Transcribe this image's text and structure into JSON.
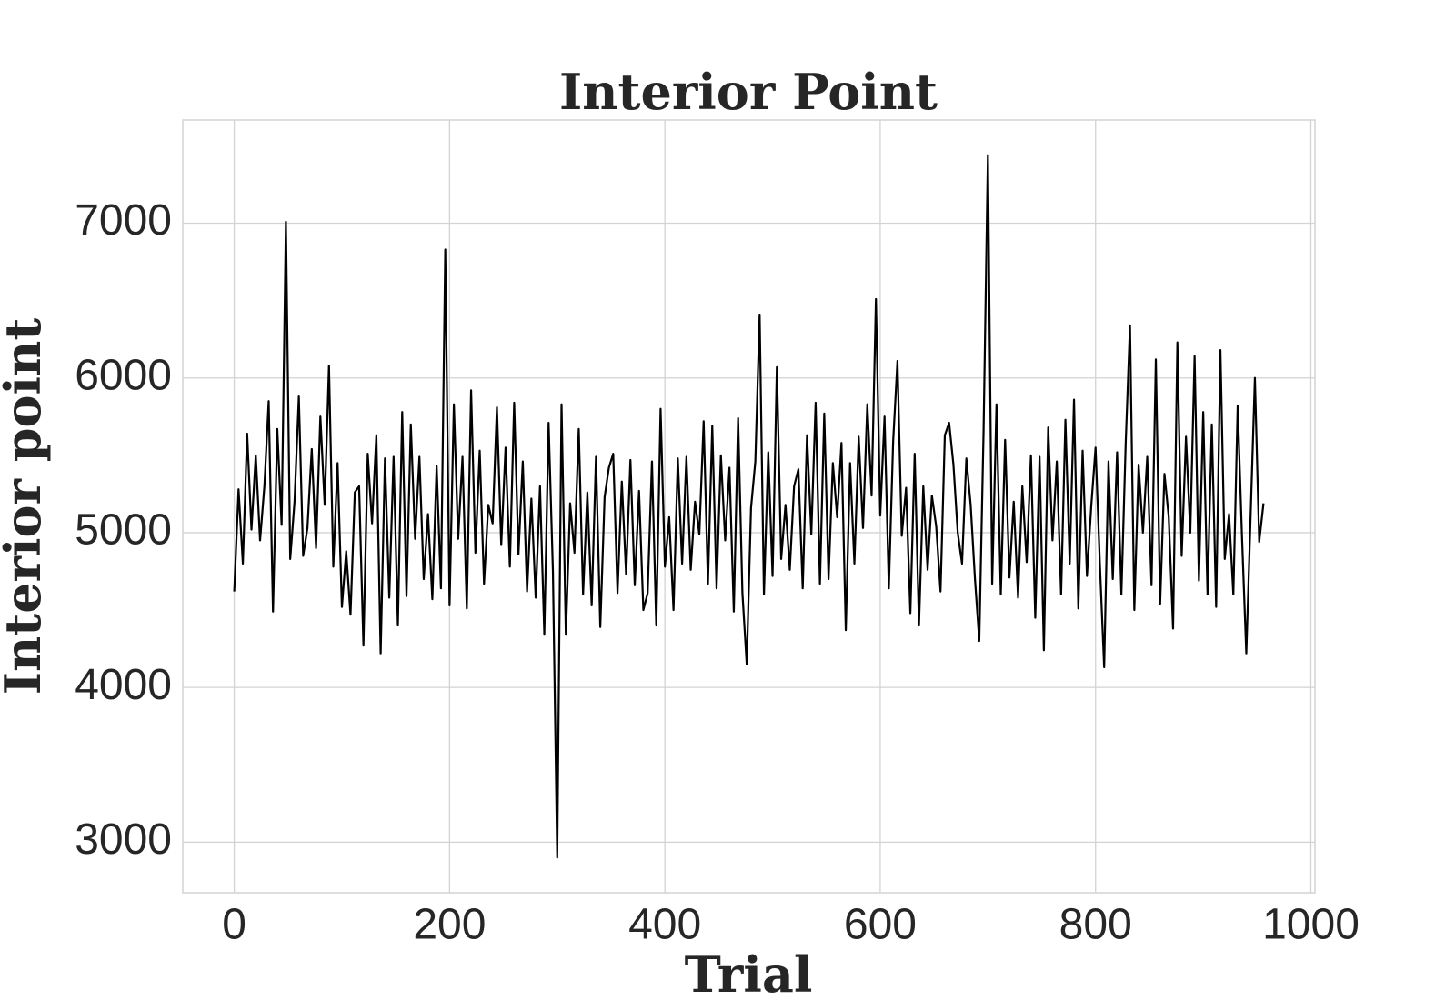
{
  "chart_data": {
    "type": "line",
    "title": "Interior Point",
    "xlabel": "Trial",
    "ylabel": "Interior point",
    "x": [
      0,
      4,
      8,
      12,
      16,
      20,
      24,
      28,
      32,
      36,
      40,
      44,
      48,
      52,
      56,
      60,
      64,
      68,
      72,
      76,
      80,
      84,
      88,
      92,
      96,
      100,
      104,
      108,
      112,
      116,
      120,
      124,
      128,
      132,
      136,
      140,
      144,
      148,
      152,
      156,
      160,
      164,
      168,
      172,
      176,
      180,
      184,
      188,
      192,
      196,
      200,
      204,
      208,
      212,
      216,
      220,
      224,
      228,
      232,
      236,
      240,
      244,
      248,
      252,
      256,
      260,
      264,
      268,
      272,
      276,
      280,
      284,
      288,
      292,
      296,
      300,
      304,
      308,
      312,
      316,
      320,
      324,
      328,
      332,
      336,
      340,
      344,
      348,
      352,
      356,
      360,
      364,
      368,
      372,
      376,
      380,
      384,
      388,
      392,
      396,
      400,
      404,
      408,
      412,
      416,
      420,
      424,
      428,
      432,
      436,
      440,
      444,
      448,
      452,
      456,
      460,
      464,
      468,
      472,
      476,
      480,
      484,
      488,
      492,
      496,
      500,
      504,
      508,
      512,
      516,
      520,
      524,
      528,
      532,
      536,
      540,
      544,
      548,
      552,
      556,
      560,
      564,
      568,
      572,
      576,
      580,
      584,
      588,
      592,
      596,
      600,
      604,
      608,
      612,
      616,
      620,
      624,
      628,
      632,
      636,
      640,
      644,
      648,
      652,
      656,
      660,
      664,
      668,
      672,
      676,
      680,
      684,
      688,
      692,
      696,
      700,
      704,
      708,
      712,
      716,
      720,
      724,
      728,
      732,
      736,
      740,
      744,
      748,
      752,
      756,
      760,
      764,
      768,
      772,
      776,
      780,
      784,
      788,
      792,
      796,
      800,
      804,
      808,
      812,
      816,
      820,
      824,
      828,
      832,
      836,
      840,
      844,
      848,
      852,
      856,
      860,
      864,
      868,
      872,
      876,
      880,
      884,
      888,
      892,
      896,
      900,
      904,
      908,
      912,
      916,
      920,
      924,
      928,
      932,
      936,
      940,
      944,
      948,
      952,
      956
    ],
    "series": [
      {
        "name": "Interior point",
        "color": "#000000",
        "values": [
          4620,
          5280,
          4800,
          5640,
          5020,
          5500,
          4950,
          5300,
          5850,
          4490,
          5670,
          5050,
          7010,
          4830,
          5200,
          5880,
          4850,
          5030,
          5540,
          4900,
          5750,
          5180,
          6080,
          4780,
          5450,
          4520,
          4880,
          4470,
          5260,
          5300,
          4270,
          5510,
          5060,
          5630,
          4220,
          5480,
          4580,
          5490,
          4400,
          5780,
          4590,
          5700,
          4960,
          5490,
          4700,
          5120,
          4570,
          5430,
          4640,
          6830,
          4530,
          5830,
          4960,
          5490,
          4510,
          5920,
          4870,
          5530,
          4670,
          5180,
          5060,
          5810,
          4920,
          5550,
          4780,
          5840,
          4860,
          5460,
          4620,
          5220,
          4580,
          5300,
          4340,
          5710,
          4750,
          2900,
          5830,
          4340,
          5190,
          4870,
          5670,
          4600,
          5260,
          4530,
          5490,
          4390,
          5230,
          5420,
          5510,
          4610,
          5330,
          4730,
          5470,
          4660,
          5270,
          4500,
          4610,
          5460,
          4400,
          5800,
          4780,
          5100,
          4500,
          5480,
          4800,
          5490,
          4760,
          5200,
          4990,
          5720,
          4670,
          5690,
          4640,
          5500,
          4950,
          5420,
          4490,
          5740,
          4610,
          4150,
          5160,
          5460,
          6410,
          4600,
          5520,
          4720,
          6070,
          4830,
          5180,
          4760,
          5300,
          5410,
          4640,
          5630,
          4990,
          5840,
          4670,
          5770,
          4700,
          5450,
          5100,
          5580,
          4370,
          5450,
          4800,
          5620,
          5030,
          5830,
          5240,
          6510,
          5110,
          5750,
          4640,
          5590,
          6110,
          4980,
          5290,
          4480,
          5510,
          4400,
          5300,
          4760,
          5240,
          5040,
          4620,
          5630,
          5710,
          5440,
          5000,
          4800,
          5480,
          5180,
          4700,
          4300,
          5660,
          7440,
          4670,
          5830,
          4600,
          5600,
          4710,
          5200,
          4580,
          5300,
          4810,
          5500,
          4450,
          5490,
          4240,
          5680,
          4950,
          5460,
          4600,
          5730,
          4800,
          5860,
          4510,
          5530,
          4720,
          5170,
          5550,
          4800,
          4130,
          5460,
          4700,
          5520,
          4600,
          5580,
          6340,
          4500,
          5440,
          5000,
          5490,
          4660,
          6120,
          4540,
          5380,
          5100,
          4380,
          6230,
          4850,
          5620,
          5000,
          6140,
          4690,
          5780,
          4600,
          5700,
          4520,
          6180,
          4830,
          5120,
          4600,
          5820,
          4980,
          4220,
          5100,
          6000,
          4940,
          5190
        ]
      }
    ],
    "xlim": [
      -47.8,
      1003.8
    ],
    "ylim": [
      2673,
      7667
    ],
    "xticks": [
      0,
      200,
      400,
      600,
      800,
      1000
    ],
    "yticks": [
      3000,
      4000,
      5000,
      6000,
      7000
    ],
    "grid": true
  }
}
